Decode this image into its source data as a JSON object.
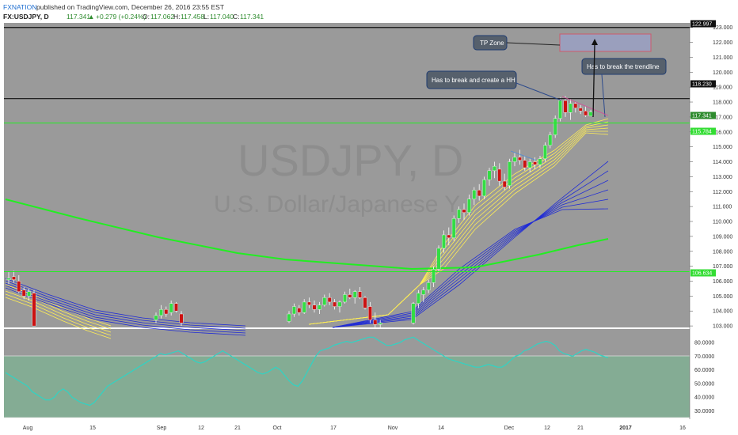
{
  "header": {
    "publisher": "FXNATION",
    "publish_text": "published on TradingView.com, December 26, 2016 23:55 EST",
    "symbol": "FX:USDJPY, D",
    "last": "117.341",
    "change": "+0.279 (+0.24%)",
    "open_label": "O:",
    "open": "117.062",
    "high_label": "H:",
    "high": "117.458",
    "low_label": "L:",
    "low": "117.040",
    "close_label": "C:",
    "close": "117.341"
  },
  "watermark": {
    "symbol": "USDJPY, D",
    "name": "U.S. Dollar/Japanese Y"
  },
  "annotations": {
    "tp_zone": "TP Zone",
    "hh": "Has to break and create a HH",
    "trendline": "Has to break the trendline"
  },
  "price_axis": {
    "ticks": [
      "123.000",
      "122.000",
      "121.000",
      "120.000",
      "119.000",
      "118.000",
      "117.000",
      "116.000",
      "115.000",
      "114.000",
      "113.000",
      "112.000",
      "111.000",
      "110.000",
      "109.000",
      "108.000",
      "107.000",
      "106.000",
      "105.000",
      "104.000",
      "103.000"
    ],
    "tags": [
      {
        "text": "122.997",
        "color": "#111111"
      },
      {
        "text": "118.230",
        "color": "#111111"
      },
      {
        "text": "117.341",
        "color": "#2e8b2e"
      },
      {
        "text": "115.784",
        "color": "#33dd33"
      },
      {
        "text": "106.634",
        "color": "#33dd33"
      }
    ]
  },
  "osc_axis": {
    "ticks": [
      "80.0000",
      "70.0000",
      "60.0000",
      "50.0000",
      "40.0000",
      "30.0000"
    ]
  },
  "time_axis": {
    "ticks": [
      "Aug",
      "15",
      "Sep",
      "12",
      "21",
      "Oct",
      "17",
      "Nov",
      "14",
      "Dec",
      "12",
      "21",
      "2017",
      "16"
    ]
  },
  "colors": {
    "panel_bg": "#9a9a9a",
    "up": "#33dd44",
    "down": "#cc1111",
    "hline": "#22ee22",
    "ema_fast": "#ffee55",
    "ema_slow": "#1f2bd6",
    "long_ma": "#22ee22",
    "osc_line": "#2fd4c4",
    "osc_fill": "#84ac94"
  },
  "chart_data": {
    "type": "candlestick",
    "symbol": "USDJPY",
    "interval": "D",
    "ylim": [
      102.9,
      123.3
    ],
    "hlines": [
      122.997,
      118.23,
      116.6,
      106.634
    ],
    "tp_zone": [
      121.9,
      123.0
    ],
    "candles": [
      [
        106.1,
        106.6,
        105.8,
        106.2
      ],
      [
        106.3,
        106.7,
        105.9,
        106.1
      ],
      [
        106.0,
        106.4,
        105.2,
        105.3
      ],
      [
        105.4,
        105.6,
        104.8,
        105.0
      ],
      [
        105.0,
        105.5,
        104.7,
        105.3
      ],
      [
        105.2,
        105.4,
        103.0,
        103.0
      ],
      [
        103.4,
        103.9,
        103.2,
        103.7
      ],
      [
        103.7,
        104.4,
        103.5,
        104.1
      ],
      [
        104.1,
        104.3,
        103.6,
        103.8
      ],
      [
        103.9,
        104.7,
        103.7,
        104.5
      ],
      [
        104.5,
        104.6,
        103.9,
        104.0
      ],
      [
        103.8,
        104.0,
        103.0,
        103.2
      ],
      [
        103.3,
        104.0,
        103.2,
        103.8
      ],
      [
        103.8,
        104.5,
        103.6,
        104.3
      ],
      [
        104.2,
        104.4,
        103.7,
        103.9
      ],
      [
        103.9,
        104.8,
        103.8,
        104.6
      ],
      [
        104.6,
        104.9,
        104.2,
        104.4
      ],
      [
        104.4,
        104.7,
        103.9,
        104.1
      ],
      [
        104.1,
        104.6,
        103.8,
        104.4
      ],
      [
        104.4,
        105.1,
        104.3,
        104.9
      ],
      [
        104.9,
        105.2,
        104.4,
        104.6
      ],
      [
        104.6,
        104.8,
        104.1,
        104.3
      ],
      [
        104.3,
        104.7,
        103.9,
        104.6
      ],
      [
        104.6,
        105.3,
        104.5,
        105.1
      ],
      [
        105.1,
        105.5,
        104.8,
        104.9
      ],
      [
        104.9,
        105.4,
        104.5,
        105.3
      ],
      [
        105.3,
        105.6,
        104.8,
        104.9
      ],
      [
        104.9,
        105.0,
        104.1,
        104.2
      ],
      [
        104.3,
        104.6,
        103.2,
        103.4
      ],
      [
        103.4,
        103.9,
        102.9,
        103.1
      ],
      [
        103.1,
        103.4,
        102.9,
        103.2
      ],
      [
        103.2,
        104.6,
        103.1,
        104.5
      ],
      [
        104.5,
        105.4,
        104.2,
        105.2
      ],
      [
        105.1,
        105.6,
        104.6,
        105.4
      ],
      [
        105.4,
        106.1,
        105.2,
        105.9
      ],
      [
        105.9,
        107.0,
        105.6,
        106.8
      ],
      [
        106.8,
        108.4,
        106.6,
        108.2
      ],
      [
        108.2,
        109.4,
        107.9,
        109.1
      ],
      [
        109.1,
        109.6,
        108.4,
        108.9
      ],
      [
        108.9,
        110.4,
        108.7,
        110.2
      ],
      [
        110.2,
        111.0,
        109.9,
        110.8
      ],
      [
        110.8,
        111.2,
        110.1,
        110.6
      ],
      [
        110.6,
        111.8,
        110.4,
        111.5
      ],
      [
        111.5,
        112.3,
        111.1,
        112.1
      ],
      [
        112.1,
        112.5,
        111.4,
        111.7
      ],
      [
        111.7,
        113.0,
        111.5,
        112.8
      ],
      [
        112.8,
        113.6,
        112.4,
        113.4
      ],
      [
        113.4,
        114.0,
        112.9,
        113.7
      ],
      [
        113.5,
        113.9,
        112.4,
        112.7
      ],
      [
        112.7,
        113.2,
        112.1,
        112.3
      ],
      [
        112.4,
        114.2,
        112.2,
        114.0
      ],
      [
        114.0,
        114.6,
        113.7,
        114.3
      ],
      [
        114.3,
        114.8,
        113.8,
        114.1
      ],
      [
        114.1,
        114.4,
        113.4,
        113.6
      ],
      [
        113.6,
        114.2,
        113.3,
        114.0
      ],
      [
        114.0,
        114.3,
        113.5,
        113.8
      ],
      [
        113.8,
        114.4,
        113.6,
        114.2
      ],
      [
        114.2,
        115.3,
        114.0,
        115.1
      ],
      [
        115.1,
        116.0,
        114.9,
        115.8
      ],
      [
        115.8,
        117.1,
        115.6,
        116.9
      ],
      [
        116.9,
        118.3,
        116.7,
        118.1
      ],
      [
        118.1,
        118.4,
        117.0,
        117.3
      ],
      [
        117.3,
        118.2,
        116.8,
        117.9
      ],
      [
        117.9,
        118.0,
        117.3,
        117.6
      ],
      [
        117.6,
        117.8,
        117.2,
        117.4
      ],
      [
        117.4,
        117.7,
        117.0,
        117.1
      ],
      [
        117.06,
        117.46,
        117.04,
        117.34
      ]
    ],
    "oscillator": {
      "name": "RSI",
      "ylim": [
        25,
        90
      ],
      "values": [
        58,
        56,
        54,
        52,
        50,
        48,
        44,
        42,
        40,
        38,
        38,
        40,
        44,
        46,
        44,
        40,
        38,
        36,
        35,
        34,
        36,
        40,
        44,
        48,
        50,
        52,
        54,
        56,
        58,
        60,
        62,
        64,
        66,
        68,
        70,
        72,
        71,
        72,
        73,
        74,
        72,
        70,
        68,
        66,
        65,
        66,
        68,
        70,
        72,
        74,
        72,
        70,
        68,
        66,
        64,
        62,
        60,
        58,
        57,
        58,
        60,
        62,
        60,
        56,
        52,
        49,
        48,
        52,
        58,
        64,
        70,
        74,
        75,
        76,
        78,
        79,
        80,
        81,
        80,
        81,
        82,
        83,
        84,
        84,
        82,
        80,
        78,
        78,
        79,
        80,
        82,
        83,
        84,
        82,
        80,
        78,
        76,
        74,
        72,
        70,
        68,
        67,
        66,
        65,
        64,
        63,
        62,
        62,
        63,
        64,
        63,
        62,
        62,
        64,
        67,
        70,
        71,
        74,
        75,
        77,
        79,
        80,
        81,
        80,
        78,
        74,
        72,
        71,
        70,
        72,
        74,
        75,
        74,
        73,
        71,
        70,
        69
      ]
    }
  }
}
